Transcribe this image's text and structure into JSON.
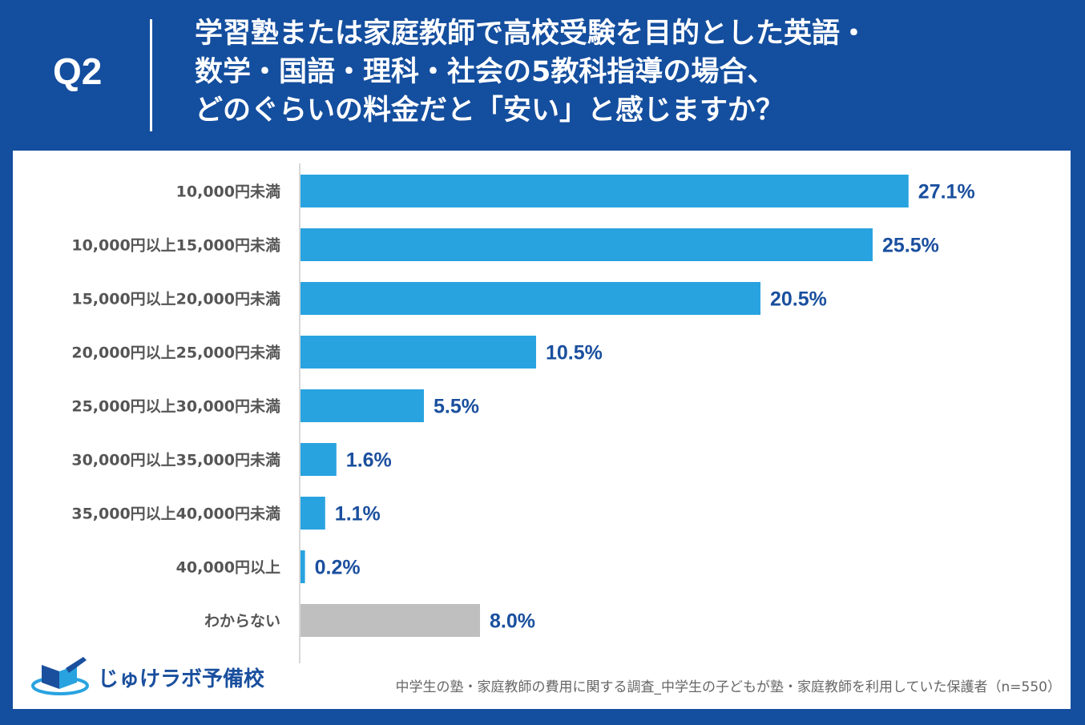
{
  "header": {
    "q_label": "Q2",
    "question_lines": [
      "学習塾または家庭教師で高校受験を目的とした英語・",
      "数学・国語・理科・社会の5教科指導の場合、",
      "どのぐらいの料金だと「安い」と感じますか？"
    ]
  },
  "chart_data": {
    "type": "bar",
    "orientation": "horizontal",
    "title": "学習塾または家庭教師で高校受験を目的とした英語・数学・国語・理科・社会の5教科指導の場合、どのぐらいの料金だと「安い」と感じますか？",
    "categories": [
      "10,000円未満",
      "10,000円以上15,000円未満",
      "15,000円以上20,000円未満",
      "20,000円以上25,000円未満",
      "25,000円以上30,000円未満",
      "30,000円以上35,000円未満",
      "35,000円以上40,000円未満",
      "40,000円以上",
      "わからない"
    ],
    "values": [
      27.1,
      25.5,
      20.5,
      10.5,
      5.5,
      1.6,
      1.1,
      0.2,
      8.0
    ],
    "value_labels": [
      "27.1%",
      "25.5%",
      "20.5%",
      "10.5%",
      "5.5%",
      "1.6%",
      "1.1%",
      "0.2%",
      "8.0%"
    ],
    "unit": "%",
    "xlim": [
      0,
      30
    ],
    "bar_colors": [
      "#29a3e0",
      "#29a3e0",
      "#29a3e0",
      "#29a3e0",
      "#29a3e0",
      "#29a3e0",
      "#29a3e0",
      "#29a3e0",
      "#bfbfbf"
    ],
    "xlabel": "",
    "ylabel": "",
    "grid": false
  },
  "colors": {
    "background": "#144e9e",
    "bar": "#29a3e0",
    "bar_unknown": "#bfbfbf",
    "value_text": "#1a4f9e",
    "axis": "#cccccc"
  },
  "footer": {
    "logo_text": "じゅけラボ予備校",
    "source": "中学生の塾・家庭教師の費用に関する調査_中学生の子どもが塾・家庭教師を利用していた保護者（n=550）"
  }
}
